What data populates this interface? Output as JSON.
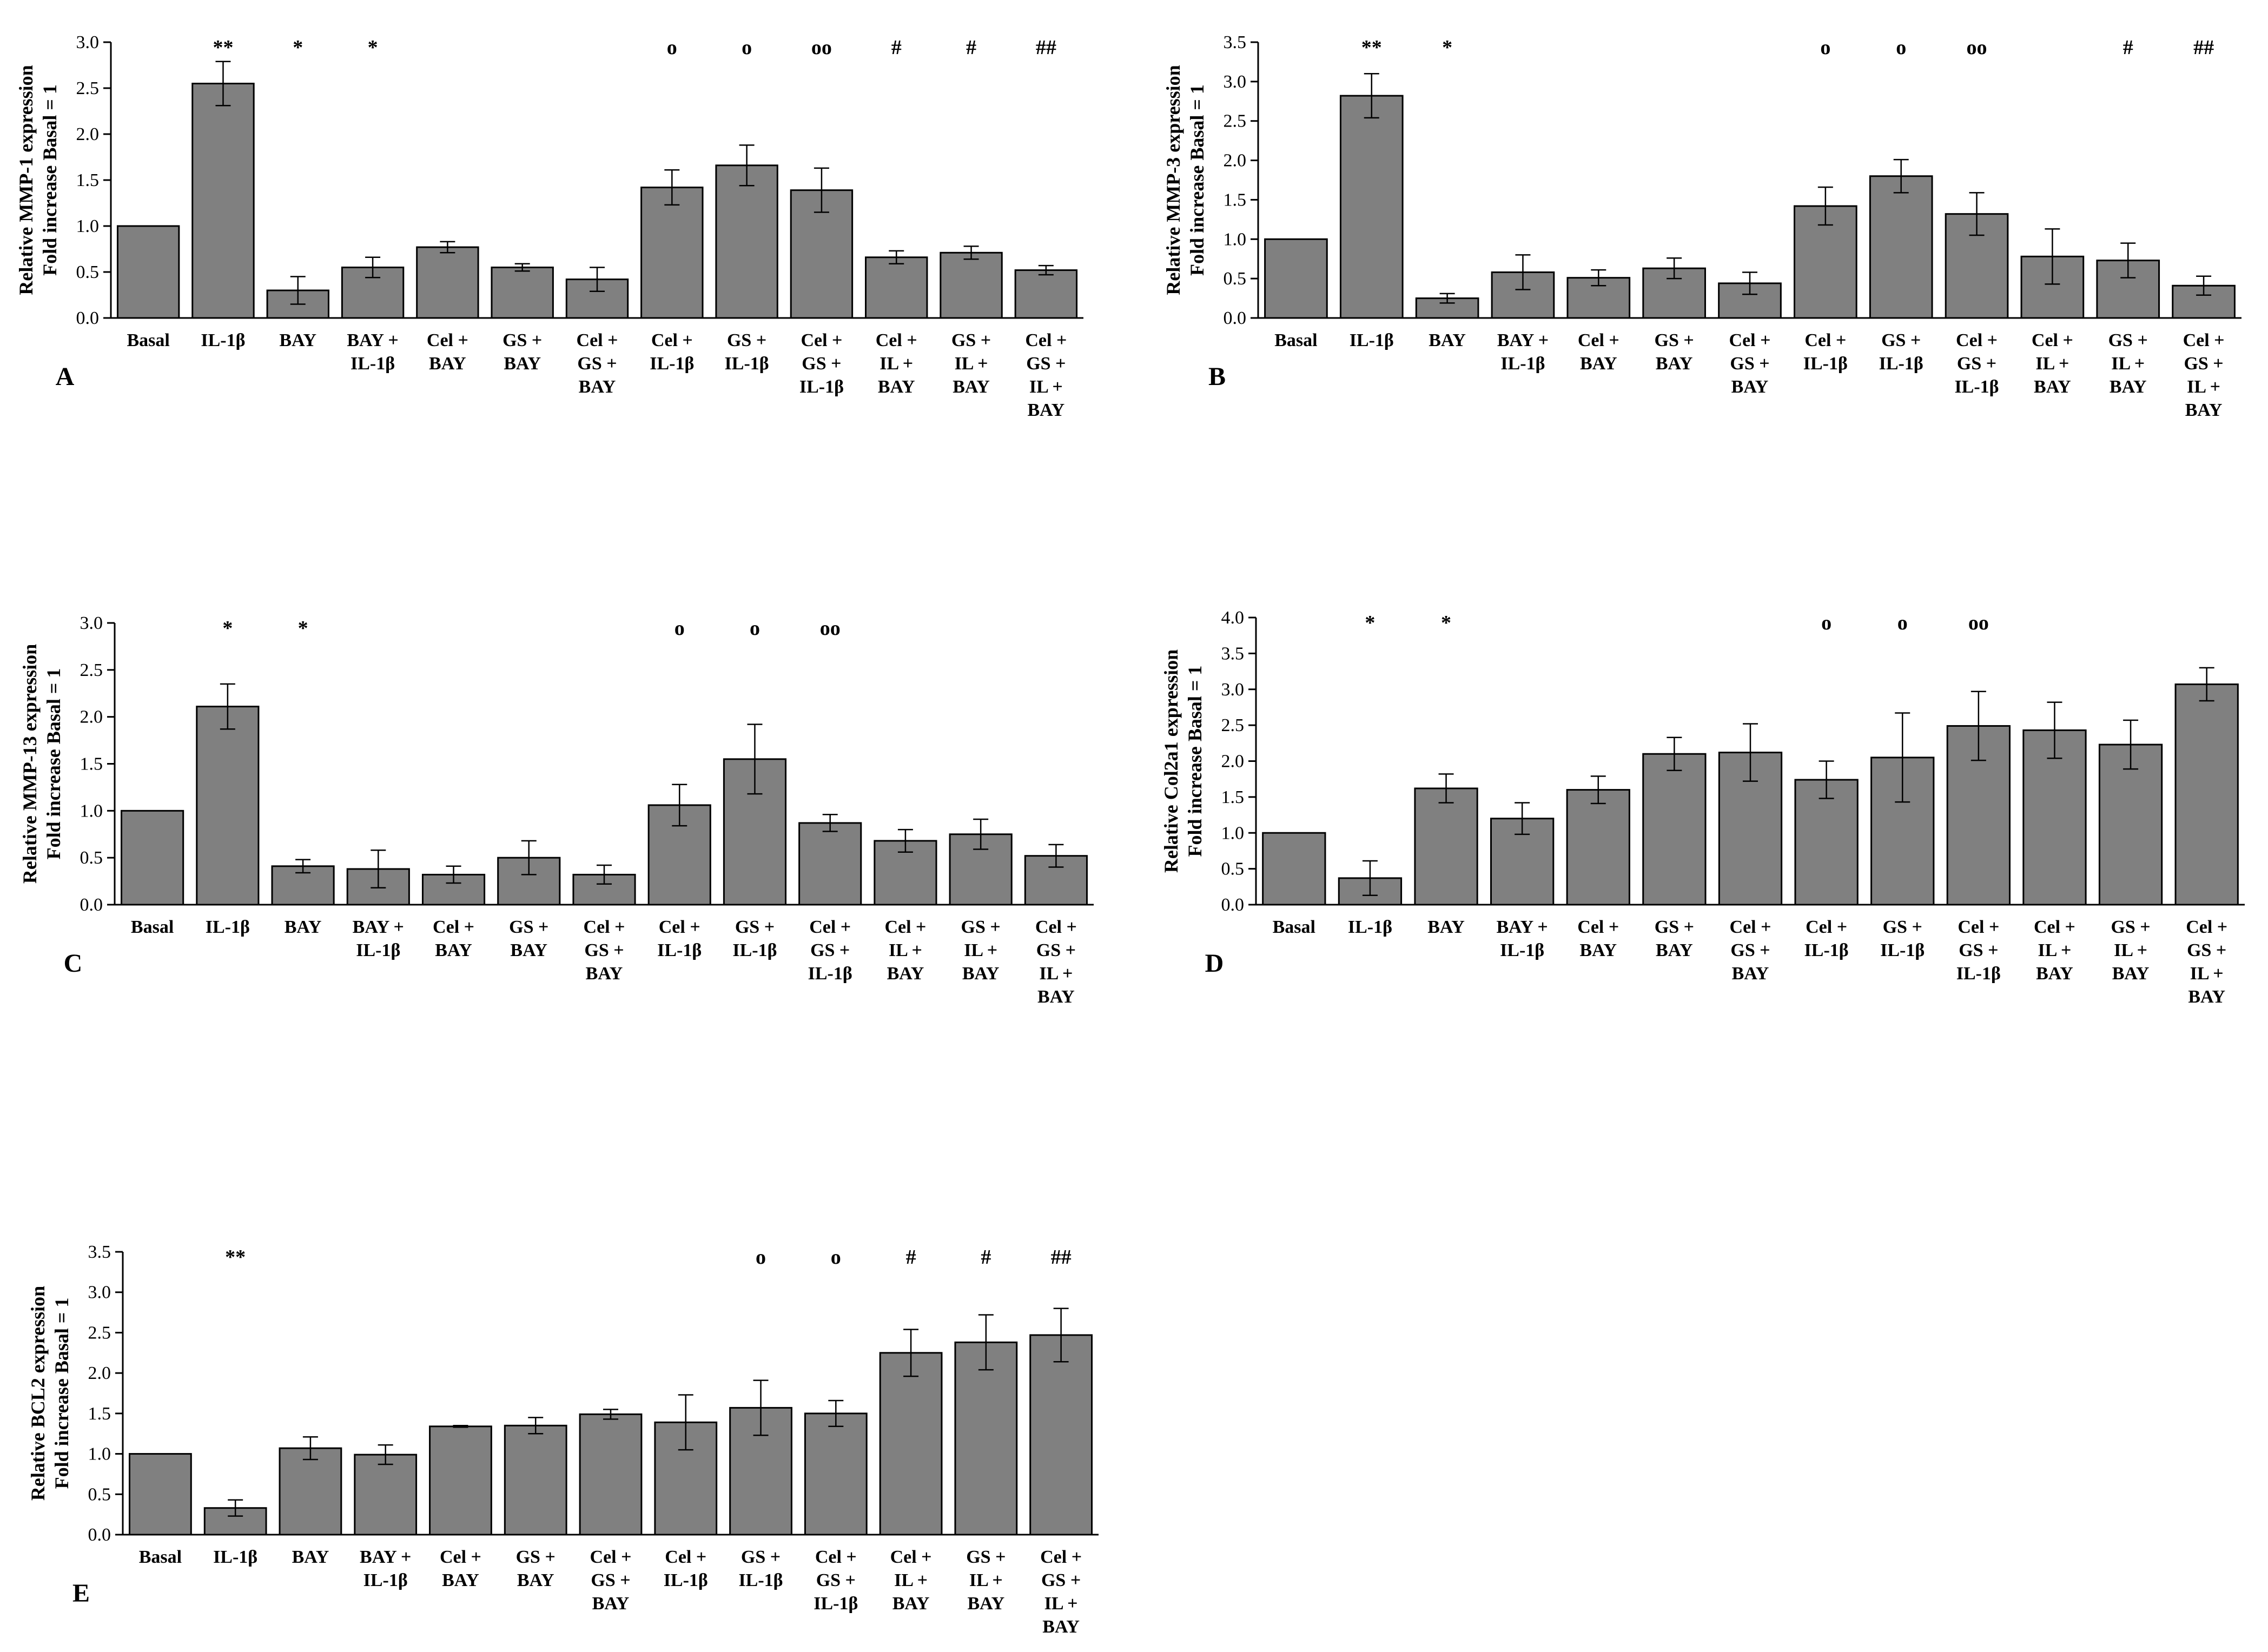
{
  "chart_data": [
    {
      "type": "bar",
      "panel_label": "A",
      "ylabel": [
        "Relative MMP-1 expression",
        "Fold increase Basal = 1"
      ],
      "ylim": [
        0,
        3.0
      ],
      "yticks": [
        "0.0",
        "0.5",
        "1.0",
        "1.5",
        "2.0",
        "2.5",
        "3.0"
      ],
      "categories": [
        [
          "Basal"
        ],
        [
          "IL-1β"
        ],
        [
          "BAY"
        ],
        [
          "BAY +",
          "IL-1β"
        ],
        [
          "Cel +",
          "BAY"
        ],
        [
          "GS +",
          "BAY"
        ],
        [
          "Cel +",
          "GS +",
          "BAY"
        ],
        [
          "Cel +",
          "IL-1β"
        ],
        [
          "GS +",
          "IL-1β"
        ],
        [
          "Cel +",
          "GS +",
          "IL-1β"
        ],
        [
          "Cel +",
          "IL +",
          "BAY"
        ],
        [
          "GS +",
          "IL +",
          "BAY"
        ],
        [
          "Cel +",
          "GS +",
          "IL +",
          "BAY"
        ]
      ],
      "values": [
        1.0,
        2.55,
        0.3,
        0.55,
        0.77,
        0.55,
        0.42,
        1.42,
        1.66,
        1.39,
        0.66,
        0.71,
        0.52
      ],
      "errors": [
        0,
        0.24,
        0.15,
        0.11,
        0.06,
        0.04,
        0.13,
        0.19,
        0.22,
        0.24,
        0.07,
        0.07,
        0.05
      ],
      "annotations": [
        "",
        "**",
        "*",
        "*",
        "",
        "",
        "",
        "o",
        "o",
        "oo",
        "#",
        "#",
        "##"
      ]
    },
    {
      "type": "bar",
      "panel_label": "B",
      "ylabel": [
        "Relative MMP-3 expression",
        "Fold increase Basal = 1"
      ],
      "ylim": [
        0,
        3.5
      ],
      "yticks": [
        "0.0",
        "0.5",
        "1.0",
        "1.5",
        "2.0",
        "2.5",
        "3.0",
        "3.5"
      ],
      "categories": [
        [
          "Basal"
        ],
        [
          "IL-1β"
        ],
        [
          "BAY"
        ],
        [
          "BAY +",
          "IL-1β"
        ],
        [
          "Cel +",
          "BAY"
        ],
        [
          "GS +",
          "BAY"
        ],
        [
          "Cel +",
          "GS +",
          "BAY"
        ],
        [
          "Cel +",
          "IL-1β"
        ],
        [
          "GS +",
          "IL-1β"
        ],
        [
          "Cel +",
          "GS +",
          "IL-1β"
        ],
        [
          "Cel +",
          "IL +",
          "BAY"
        ],
        [
          "GS +",
          "IL +",
          "BAY"
        ],
        [
          "Cel +",
          "GS +",
          "IL +",
          "BAY"
        ]
      ],
      "values": [
        1.0,
        2.82,
        0.25,
        0.58,
        0.51,
        0.63,
        0.44,
        1.42,
        1.8,
        1.32,
        0.78,
        0.73,
        0.41
      ],
      "errors": [
        0,
        0.28,
        0.06,
        0.22,
        0.1,
        0.13,
        0.14,
        0.24,
        0.21,
        0.27,
        0.35,
        0.22,
        0.12
      ],
      "annotations": [
        "",
        "**",
        "*",
        "",
        "",
        "",
        "",
        "o",
        "o",
        "oo",
        "",
        "#",
        "##"
      ]
    },
    {
      "type": "bar",
      "panel_label": "C",
      "ylabel": [
        "Relative MMP-13 expression",
        "Fold increase Basal = 1"
      ],
      "ylim": [
        0,
        3.0
      ],
      "yticks": [
        "0.0",
        "0.5",
        "1.0",
        "1.5",
        "2.0",
        "2.5",
        "3.0"
      ],
      "categories": [
        [
          "Basal"
        ],
        [
          "IL-1β"
        ],
        [
          "BAY"
        ],
        [
          "BAY +",
          "IL-1β"
        ],
        [
          "Cel +",
          "BAY"
        ],
        [
          "GS +",
          "BAY"
        ],
        [
          "Cel +",
          "GS +",
          "BAY"
        ],
        [
          "Cel +",
          "IL-1β"
        ],
        [
          "GS +",
          "IL-1β"
        ],
        [
          "Cel +",
          "GS +",
          "IL-1β"
        ],
        [
          "Cel +",
          "IL +",
          "BAY"
        ],
        [
          "GS +",
          "IL +",
          "BAY"
        ],
        [
          "Cel +",
          "GS +",
          "IL +",
          "BAY"
        ]
      ],
      "values": [
        1.0,
        2.11,
        0.41,
        0.38,
        0.32,
        0.5,
        0.32,
        1.06,
        1.55,
        0.87,
        0.68,
        0.75,
        0.52
      ],
      "errors": [
        0,
        0.24,
        0.07,
        0.2,
        0.09,
        0.18,
        0.1,
        0.22,
        0.37,
        0.09,
        0.12,
        0.16,
        0.12
      ],
      "annotations": [
        "",
        "*",
        "*",
        "",
        "",
        "",
        "",
        "o",
        "o",
        "oo",
        "",
        "",
        ""
      ]
    },
    {
      "type": "bar",
      "panel_label": "D",
      "ylabel": [
        "Relative Col2a1 expression",
        "Fold increase Basal = 1"
      ],
      "ylim": [
        0,
        4.0
      ],
      "yticks": [
        "0.0",
        "0.5",
        "1.0",
        "1.5",
        "2.0",
        "2.5",
        "3.0",
        "3.5",
        "4.0"
      ],
      "categories": [
        [
          "Basal"
        ],
        [
          "IL-1β"
        ],
        [
          "BAY"
        ],
        [
          "BAY +",
          "IL-1β"
        ],
        [
          "Cel +",
          "BAY"
        ],
        [
          "GS +",
          "BAY"
        ],
        [
          "Cel +",
          "GS +",
          "BAY"
        ],
        [
          "Cel +",
          "IL-1β"
        ],
        [
          "GS +",
          "IL-1β"
        ],
        [
          "Cel +",
          "GS +",
          "IL-1β"
        ],
        [
          "Cel +",
          "IL +",
          "BAY"
        ],
        [
          "GS +",
          "IL +",
          "BAY"
        ],
        [
          "Cel +",
          "GS +",
          "IL +",
          "BAY"
        ]
      ],
      "values": [
        1.0,
        0.37,
        1.62,
        1.2,
        1.6,
        2.1,
        2.12,
        1.74,
        2.05,
        2.49,
        2.43,
        2.23,
        3.07
      ],
      "errors": [
        0,
        0.24,
        0.2,
        0.22,
        0.19,
        0.23,
        0.4,
        0.26,
        0.62,
        0.48,
        0.39,
        0.34,
        0.23
      ],
      "annotations": [
        "",
        "*",
        "*",
        "",
        "",
        "",
        "",
        "o",
        "o",
        "oo",
        "",
        "",
        ""
      ]
    },
    {
      "type": "bar",
      "panel_label": "E",
      "ylabel": [
        "Relative BCL2 expression",
        "Fold increase Basal = 1"
      ],
      "ylim": [
        0,
        3.5
      ],
      "yticks": [
        "0.0",
        "0.5",
        "1.0",
        "1.5",
        "2.0",
        "2.5",
        "3.0",
        "3.5"
      ],
      "categories": [
        [
          "Basal"
        ],
        [
          "IL-1β"
        ],
        [
          "BAY"
        ],
        [
          "BAY +",
          "IL-1β"
        ],
        [
          "Cel +",
          "BAY"
        ],
        [
          "GS +",
          "BAY"
        ],
        [
          "Cel +",
          "GS +",
          "BAY"
        ],
        [
          "Cel +",
          "IL-1β"
        ],
        [
          "GS +",
          "IL-1β"
        ],
        [
          "Cel +",
          "GS +",
          "IL-1β"
        ],
        [
          "Cel +",
          "IL +",
          "BAY"
        ],
        [
          "GS +",
          "IL +",
          "BAY"
        ],
        [
          "Cel +",
          "GS +",
          "IL +",
          "BAY"
        ]
      ],
      "values": [
        1.0,
        0.33,
        1.07,
        0.99,
        1.34,
        1.35,
        1.49,
        1.39,
        1.57,
        1.5,
        2.25,
        2.38,
        2.47
      ],
      "errors": [
        0,
        0.1,
        0.14,
        0.12,
        0.01,
        0.1,
        0.06,
        0.34,
        0.34,
        0.16,
        0.29,
        0.34,
        0.33
      ],
      "annotations": [
        "",
        "**",
        "",
        "",
        "",
        "",
        "",
        "",
        "o",
        "o",
        "#",
        "#",
        "##"
      ]
    }
  ]
}
